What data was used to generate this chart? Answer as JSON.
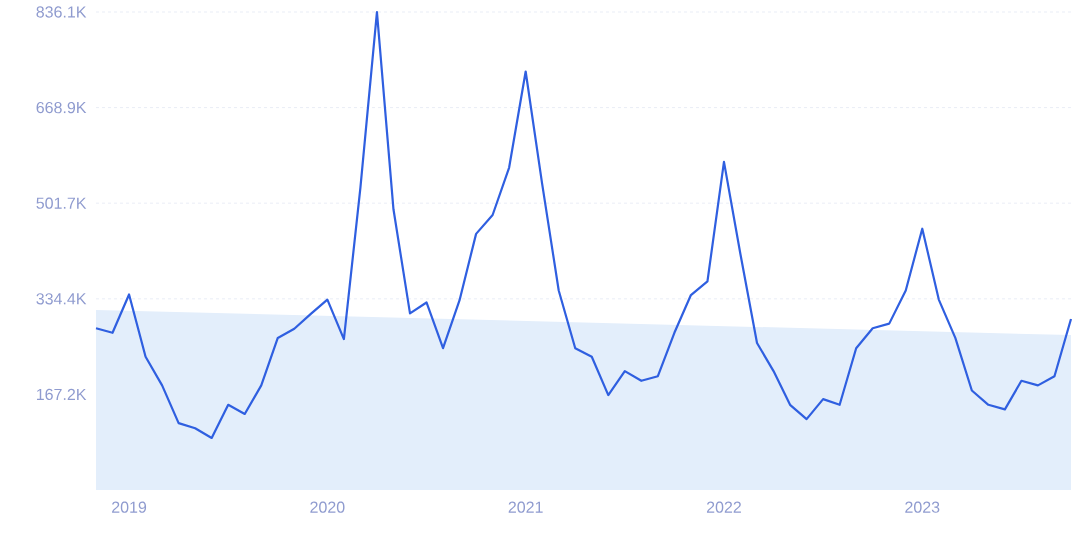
{
  "chart_data": {
    "type": "line",
    "x": [
      "2018-11",
      "2018-12",
      "2019-01",
      "2019-02",
      "2019-03",
      "2019-04",
      "2019-05",
      "2019-06",
      "2019-07",
      "2019-08",
      "2019-09",
      "2019-10",
      "2019-11",
      "2019-12",
      "2020-01",
      "2020-02",
      "2020-03",
      "2020-04",
      "2020-05",
      "2020-06",
      "2020-07",
      "2020-08",
      "2020-09",
      "2020-10",
      "2020-11",
      "2020-12",
      "2021-01",
      "2021-02",
      "2021-03",
      "2021-04",
      "2021-05",
      "2021-06",
      "2021-07",
      "2021-08",
      "2021-09",
      "2021-10",
      "2021-11",
      "2021-12",
      "2022-01",
      "2022-02",
      "2022-03",
      "2022-04",
      "2022-05",
      "2022-06",
      "2022-07",
      "2022-08",
      "2022-09",
      "2022-10",
      "2022-11",
      "2022-12",
      "2023-01",
      "2023-02",
      "2023-03",
      "2023-04",
      "2023-05",
      "2023-06",
      "2023-07",
      "2023-08",
      "2023-09",
      "2023-10"
    ],
    "series": [
      {
        "type": "area",
        "x": [
          "2018-11",
          "2023-10"
        ],
        "values": [
          315,
          271
        ],
        "color": "#e3eefb"
      },
      {
        "values": [
          283,
          275,
          342,
          233,
          183,
          117,
          108,
          91,
          149,
          133,
          183,
          266,
          282,
          308,
          333,
          264,
          529,
          836,
          491,
          309,
          328,
          248,
          332,
          448,
          481,
          564,
          732,
          535,
          349,
          248,
          233,
          166,
          208,
          191,
          199,
          275,
          341,
          365,
          574,
          412,
          257,
          208,
          149,
          124,
          159,
          149,
          248,
          283,
          291,
          349,
          457,
          333,
          266,
          174,
          149,
          141,
          191,
          183,
          199,
          299
        ],
        "color": "#2f5fe0"
      }
    ],
    "xlim": [
      "2018-11",
      "2023-10"
    ],
    "xticks": [
      {
        "value": "2019-01",
        "label": "2019"
      },
      {
        "value": "2020-01",
        "label": "2020"
      },
      {
        "value": "2021-01",
        "label": "2021"
      },
      {
        "value": "2022-01",
        "label": "2022"
      },
      {
        "value": "2023-01",
        "label": "2023"
      }
    ],
    "ylim": [
      0,
      836.1
    ],
    "yticks": [
      {
        "value": 167.2,
        "label": "167.2K"
      },
      {
        "value": 334.4,
        "label": "334.4K"
      },
      {
        "value": 501.7,
        "label": "501.7K"
      },
      {
        "value": 668.9,
        "label": "668.9K"
      },
      {
        "value": 836.1,
        "label": "836.1K"
      }
    ],
    "grid": "y"
  }
}
